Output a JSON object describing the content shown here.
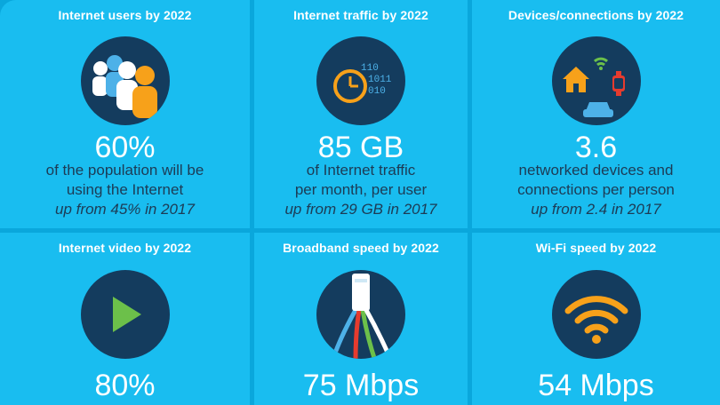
{
  "tiles": [
    {
      "title": "Internet users by 2022",
      "value": "60%",
      "line1": "of the population will be",
      "line2": "using the Internet",
      "line3": "up from 45% in 2017",
      "icon": "people-icon"
    },
    {
      "title": "Internet traffic by 2022",
      "value": "85 GB",
      "line1": "of Internet traffic",
      "line2": "per month, per user",
      "line3": "up from 29 GB in 2017",
      "icon": "clock-binary-icon",
      "binary": [
        "110",
        "1011",
        "010"
      ]
    },
    {
      "title": "Devices/connections by 2022",
      "value": "3.6",
      "line1": "networked devices and",
      "line2": "connections per person",
      "line3": "up from 2.4 in 2017",
      "icon": "connected-devices-icon"
    },
    {
      "title": "Internet video by 2022",
      "value": "80%",
      "icon": "play-icon"
    },
    {
      "title": "Broadband speed by 2022",
      "value": "75 Mbps",
      "icon": "cable-icon"
    },
    {
      "title": "Wi-Fi speed by 2022",
      "value": "54 Mbps",
      "icon": "wifi-icon"
    }
  ],
  "colors": {
    "background": "#0aa7dc",
    "tile": "#19bdf0",
    "circle": "#143c5e",
    "orange": "#f7a11a",
    "green": "#6cc04a",
    "red": "#e63b2e",
    "blue": "#4db1e8"
  }
}
